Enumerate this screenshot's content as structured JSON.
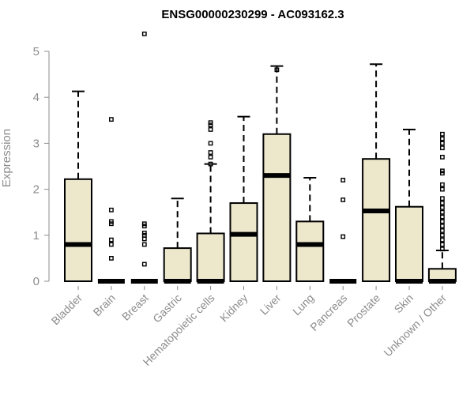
{
  "chart_data": {
    "type": "boxplot",
    "title": "ENSG00000230299 - AC093162.3",
    "ylabel": "Expression",
    "xlabel": "",
    "ylim": [
      0,
      5.4
    ],
    "yticks": [
      0,
      1,
      2,
      3,
      4,
      5
    ],
    "colors": {
      "box_fill": "#ede7cc",
      "stroke": "#000000",
      "axis": "#8c8c8c",
      "text": "#8c8c8c"
    },
    "categories": [
      "Bladder",
      "Brain",
      "Breast",
      "Gastric",
      "Hematopoietic cells",
      "Kidney",
      "Liver",
      "Lung",
      "Pancreas",
      "Prostate",
      "Skin",
      "Unknown / Other"
    ],
    "boxes": [
      {
        "category": "Bladder",
        "q1": 0,
        "median": 0.8,
        "q3": 2.22,
        "whisker_low": 0,
        "whisker_high": 4.13,
        "outliers": []
      },
      {
        "category": "Brain",
        "q1": 0,
        "median": 0,
        "q3": 0,
        "whisker_low": 0,
        "whisker_high": 0,
        "outliers": [
          0.5,
          0.8,
          0.9,
          1.25,
          1.3,
          1.55,
          3.52
        ]
      },
      {
        "category": "Breast",
        "q1": 0,
        "median": 0,
        "q3": 0,
        "whisker_low": 0,
        "whisker_high": 0,
        "outliers": [
          0.37,
          0.8,
          0.92,
          1.0,
          1.05,
          1.2,
          1.25,
          5.38
        ]
      },
      {
        "category": "Gastric",
        "q1": 0,
        "median": 0,
        "q3": 0.72,
        "whisker_low": 0,
        "whisker_high": 1.8,
        "outliers": []
      },
      {
        "category": "Hematopoietic cells",
        "q1": 0,
        "median": 0,
        "q3": 1.04,
        "whisker_low": 0,
        "whisker_high": 2.55,
        "outliers": [
          2.55,
          2.7,
          2.8,
          3.0,
          3.3,
          3.4,
          3.45
        ]
      },
      {
        "category": "Kidney",
        "q1": 0,
        "median": 1.02,
        "q3": 1.7,
        "whisker_low": 0,
        "whisker_high": 3.58,
        "outliers": []
      },
      {
        "category": "Liver",
        "q1": 0,
        "median": 2.3,
        "q3": 3.2,
        "whisker_low": 0,
        "whisker_high": 4.68,
        "outliers": [
          4.6
        ]
      },
      {
        "category": "Lung",
        "q1": 0,
        "median": 0.8,
        "q3": 1.3,
        "whisker_low": 0,
        "whisker_high": 2.25,
        "outliers": []
      },
      {
        "category": "Pancreas",
        "q1": 0,
        "median": 0,
        "q3": 0,
        "whisker_low": 0,
        "whisker_high": 0,
        "outliers": [
          0.97,
          1.77,
          2.2
        ]
      },
      {
        "category": "Prostate",
        "q1": 0,
        "median": 1.53,
        "q3": 2.66,
        "whisker_low": 0,
        "whisker_high": 4.72,
        "outliers": []
      },
      {
        "category": "Skin",
        "q1": 0,
        "median": 0,
        "q3": 1.62,
        "whisker_low": 0,
        "whisker_high": 3.3,
        "outliers": []
      },
      {
        "category": "Unknown / Other",
        "q1": 0,
        "median": 0,
        "q3": 0.27,
        "whisker_low": 0,
        "whisker_high": 0.67,
        "outliers": [
          0.7,
          0.8,
          0.9,
          1.0,
          1.1,
          1.2,
          1.3,
          1.4,
          1.5,
          1.6,
          1.7,
          1.8,
          2.0,
          2.1,
          2.35,
          2.4,
          2.7,
          2.9,
          3.0,
          3.1,
          3.2
        ]
      }
    ]
  }
}
